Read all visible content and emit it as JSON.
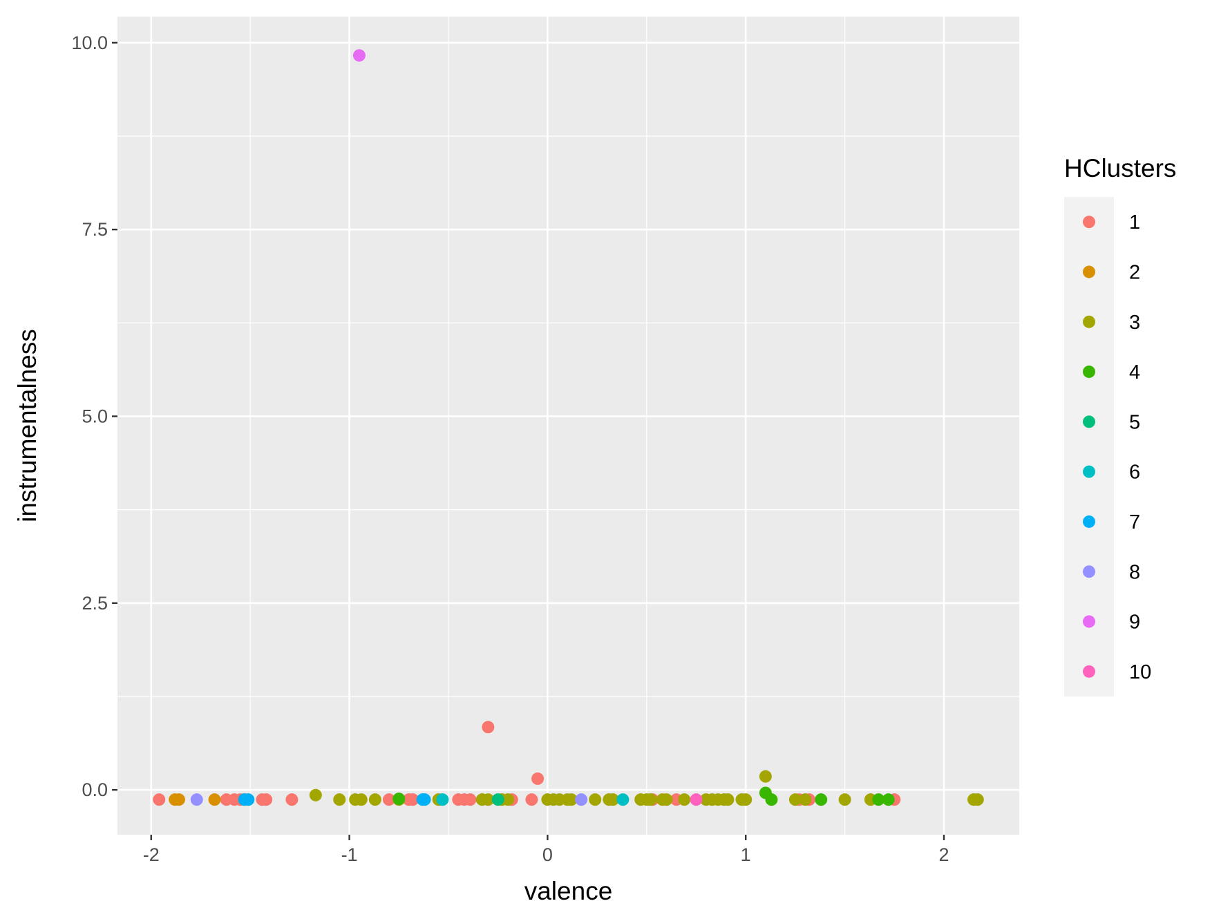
{
  "chart_data": {
    "type": "scatter",
    "title": "",
    "xlabel": "valence",
    "ylabel": "instrumentalness",
    "xlim": [
      -2.17,
      2.38
    ],
    "ylim": [
      -0.6,
      10.35
    ],
    "x_ticks": [
      -2,
      -1,
      0,
      1,
      2
    ],
    "x_tick_labels": [
      "-2",
      "-1",
      "0",
      "1",
      "2"
    ],
    "y_ticks": [
      0,
      2.5,
      5,
      7.5,
      10
    ],
    "y_tick_labels": [
      "0.0",
      "2.5",
      "5.0",
      "7.5",
      "10.0"
    ],
    "grid": true,
    "background": "#ebebeb",
    "legend": {
      "title": "HClusters",
      "position": "right",
      "entries": [
        {
          "label": "1",
          "color": "#F8766D"
        },
        {
          "label": "2",
          "color": "#D89000"
        },
        {
          "label": "3",
          "color": "#A3A500"
        },
        {
          "label": "4",
          "color": "#39B600"
        },
        {
          "label": "5",
          "color": "#00BF7D"
        },
        {
          "label": "6",
          "color": "#00BFC4"
        },
        {
          "label": "7",
          "color": "#00B0F6"
        },
        {
          "label": "8",
          "color": "#9590FF"
        },
        {
          "label": "9",
          "color": "#E76BF3"
        },
        {
          "label": "10",
          "color": "#FF62BC"
        }
      ]
    },
    "series": [
      {
        "name": "1",
        "color": "#F8766D",
        "points": [
          [
            -1.96,
            -0.13
          ],
          [
            -1.62,
            -0.13
          ],
          [
            -1.58,
            -0.13
          ],
          [
            -1.55,
            -0.13
          ],
          [
            -1.44,
            -0.13
          ],
          [
            -1.42,
            -0.13
          ],
          [
            -1.29,
            -0.13
          ],
          [
            -0.8,
            -0.13
          ],
          [
            -0.7,
            -0.13
          ],
          [
            -0.68,
            -0.13
          ],
          [
            -0.45,
            -0.13
          ],
          [
            -0.42,
            -0.13
          ],
          [
            -0.39,
            -0.13
          ],
          [
            -0.3,
            0.84
          ],
          [
            -0.18,
            -0.13
          ],
          [
            -0.08,
            -0.13
          ],
          [
            -0.05,
            0.15
          ],
          [
            0.53,
            -0.13
          ],
          [
            0.65,
            -0.13
          ],
          [
            1.27,
            -0.13
          ],
          [
            1.32,
            -0.13
          ],
          [
            1.75,
            -0.13
          ]
        ]
      },
      {
        "name": "2",
        "color": "#D89000",
        "points": [
          [
            -1.88,
            -0.13
          ],
          [
            -1.86,
            -0.13
          ],
          [
            -1.68,
            -0.13
          ],
          [
            -1.53,
            -0.13
          ]
        ]
      },
      {
        "name": "3",
        "color": "#A3A500",
        "points": [
          [
            -1.17,
            -0.07
          ],
          [
            -1.05,
            -0.13
          ],
          [
            -0.97,
            -0.13
          ],
          [
            -0.94,
            -0.13
          ],
          [
            -0.87,
            -0.13
          ],
          [
            -0.75,
            -0.13
          ],
          [
            -0.55,
            -0.13
          ],
          [
            -0.33,
            -0.13
          ],
          [
            -0.3,
            -0.13
          ],
          [
            -0.23,
            -0.13
          ],
          [
            -0.2,
            -0.13
          ],
          [
            0.0,
            -0.13
          ],
          [
            0.03,
            -0.13
          ],
          [
            0.06,
            -0.13
          ],
          [
            0.1,
            -0.13
          ],
          [
            0.12,
            -0.13
          ],
          [
            0.24,
            -0.13
          ],
          [
            0.31,
            -0.13
          ],
          [
            0.33,
            -0.13
          ],
          [
            0.47,
            -0.13
          ],
          [
            0.5,
            -0.13
          ],
          [
            0.52,
            -0.13
          ],
          [
            0.58,
            -0.13
          ],
          [
            0.6,
            -0.13
          ],
          [
            0.69,
            -0.13
          ],
          [
            0.8,
            -0.13
          ],
          [
            0.83,
            -0.13
          ],
          [
            0.86,
            -0.13
          ],
          [
            0.89,
            -0.13
          ],
          [
            0.91,
            -0.13
          ],
          [
            0.98,
            -0.13
          ],
          [
            1.0,
            -0.13
          ],
          [
            1.1,
            0.18
          ],
          [
            1.25,
            -0.13
          ],
          [
            1.3,
            -0.13
          ],
          [
            1.5,
            -0.13
          ],
          [
            1.63,
            -0.13
          ],
          [
            2.15,
            -0.13
          ],
          [
            2.17,
            -0.13
          ]
        ]
      },
      {
        "name": "4",
        "color": "#39B600",
        "points": [
          [
            -0.75,
            -0.12
          ],
          [
            1.1,
            -0.04
          ],
          [
            1.13,
            -0.13
          ],
          [
            1.38,
            -0.13
          ],
          [
            1.67,
            -0.13
          ],
          [
            1.72,
            -0.13
          ]
        ]
      },
      {
        "name": "5",
        "color": "#00BF7D",
        "points": [
          [
            -0.25,
            -0.13
          ]
        ]
      },
      {
        "name": "6",
        "color": "#00BFC4",
        "points": [
          [
            -0.53,
            -0.13
          ],
          [
            0.38,
            -0.13
          ]
        ]
      },
      {
        "name": "7",
        "color": "#00B0F6",
        "points": [
          [
            -1.53,
            -0.13
          ],
          [
            -1.51,
            -0.13
          ],
          [
            -0.63,
            -0.13
          ],
          [
            -0.62,
            -0.13
          ]
        ]
      },
      {
        "name": "8",
        "color": "#9590FF",
        "points": [
          [
            -1.77,
            -0.13
          ],
          [
            0.17,
            -0.13
          ]
        ]
      },
      {
        "name": "9",
        "color": "#E76BF3",
        "points": [
          [
            -0.95,
            9.83
          ]
        ]
      },
      {
        "name": "10",
        "color": "#FF62BC",
        "points": [
          [
            0.75,
            -0.13
          ]
        ]
      }
    ]
  }
}
